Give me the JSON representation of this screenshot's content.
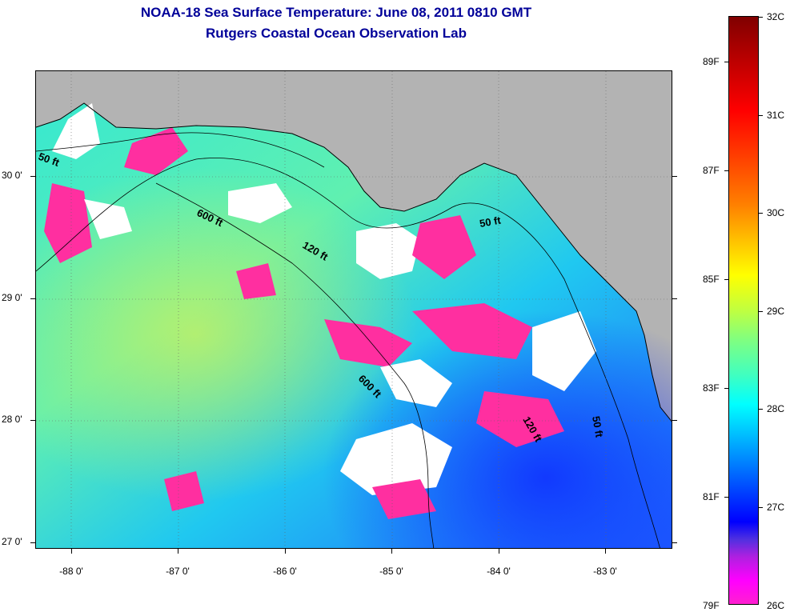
{
  "title": {
    "line1": "NOAA-18 Sea Surface Temperature:  June 08, 2011 0810 GMT",
    "line2": "Rutgers Coastal Ocean Observation Lab"
  },
  "map": {
    "lat_labels": [
      "30 0'",
      "29 0'",
      "28 0'",
      "27 0'"
    ],
    "lon_labels": [
      "-88 0'",
      "-87 0'",
      "-86 0'",
      "-85 0'",
      "-84 0'",
      "-83 0'"
    ],
    "contour_labels": [
      "50 ft",
      "600 ft",
      "120 ft",
      "50 ft",
      "600 ft",
      "120 ft",
      "50 ft"
    ],
    "colors": {
      "land": "#b3b3b3",
      "cloud": "#ffffff",
      "coastline": "#000000"
    }
  },
  "colorbar": {
    "celsius_labels": [
      "32C",
      "31C",
      "30C",
      "29C",
      "28C",
      "27C",
      "26C"
    ],
    "fahrenheit_labels": [
      "89F",
      "87F",
      "85F",
      "83F",
      "81F",
      "79F"
    ]
  }
}
